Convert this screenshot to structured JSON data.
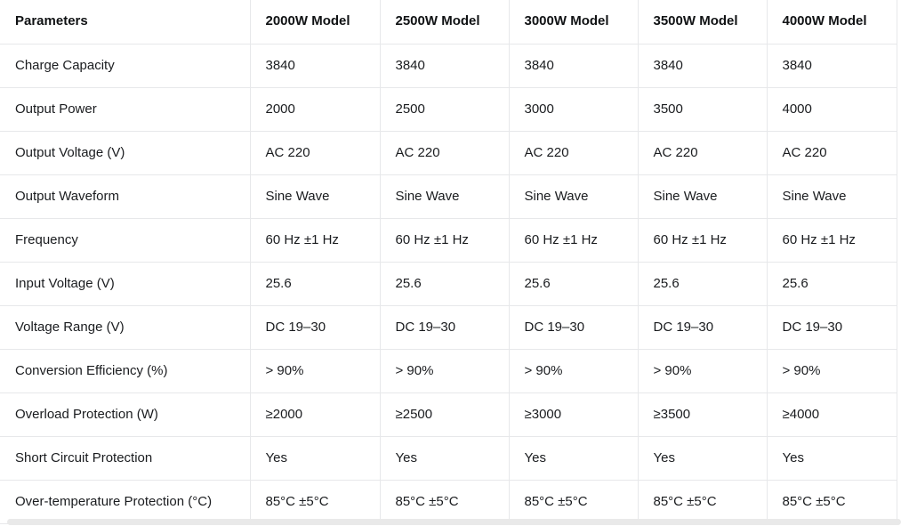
{
  "table": {
    "columns": [
      "Parameters",
      "2000W Model",
      "2500W Model",
      "3000W Model",
      "3500W Model",
      "4000W Model"
    ],
    "rows": [
      {
        "cells": [
          "Charge Capacity",
          "3840",
          "3840",
          "3840",
          "3840",
          "3840"
        ]
      },
      {
        "cells": [
          "Output Power",
          "2000",
          "2500",
          "3000",
          "3500",
          "4000"
        ]
      },
      {
        "cells": [
          "Output Voltage (V)",
          "AC 220",
          "AC 220",
          "AC 220",
          "AC 220",
          "AC 220"
        ]
      },
      {
        "cells": [
          "Output Waveform",
          "Sine Wave",
          "Sine Wave",
          "Sine Wave",
          "Sine Wave",
          "Sine Wave"
        ]
      },
      {
        "cells": [
          "Frequency",
          "60 Hz ±1 Hz",
          "60 Hz ±1 Hz",
          "60 Hz ±1 Hz",
          "60 Hz ±1 Hz",
          "60 Hz ±1 Hz"
        ]
      },
      {
        "cells": [
          "Input Voltage (V)",
          "25.6",
          "25.6",
          "25.6",
          "25.6",
          "25.6"
        ]
      },
      {
        "cells": [
          "Voltage Range (V)",
          "DC 19–30",
          "DC 19–30",
          "DC 19–30",
          "DC 19–30",
          "DC 19–30"
        ]
      },
      {
        "cells": [
          "Conversion Efficiency (%)",
          "> 90%",
          "> 90%",
          "> 90%",
          "> 90%",
          "> 90%"
        ]
      },
      {
        "cells": [
          "Overload Protection (W)",
          "≥2000",
          "≥2500",
          "≥3000",
          "≥3500",
          "≥4000"
        ]
      },
      {
        "cells": [
          "Short Circuit Protection",
          "Yes",
          "Yes",
          "Yes",
          "Yes",
          "Yes"
        ]
      },
      {
        "cells": [
          "Over-temperature Protection (°C)",
          "85°C ±5°C",
          "85°C ±5°C",
          "85°C ±5°C",
          "85°C ±5°C",
          "85°C ±5°C"
        ]
      }
    ]
  },
  "colors": {
    "background": "#ffffff",
    "divider": "#e7e8ea",
    "header_text": "#101214",
    "cell_text": "#1a1c1f",
    "scrollbar_thumb": "#e9e9e9"
  }
}
